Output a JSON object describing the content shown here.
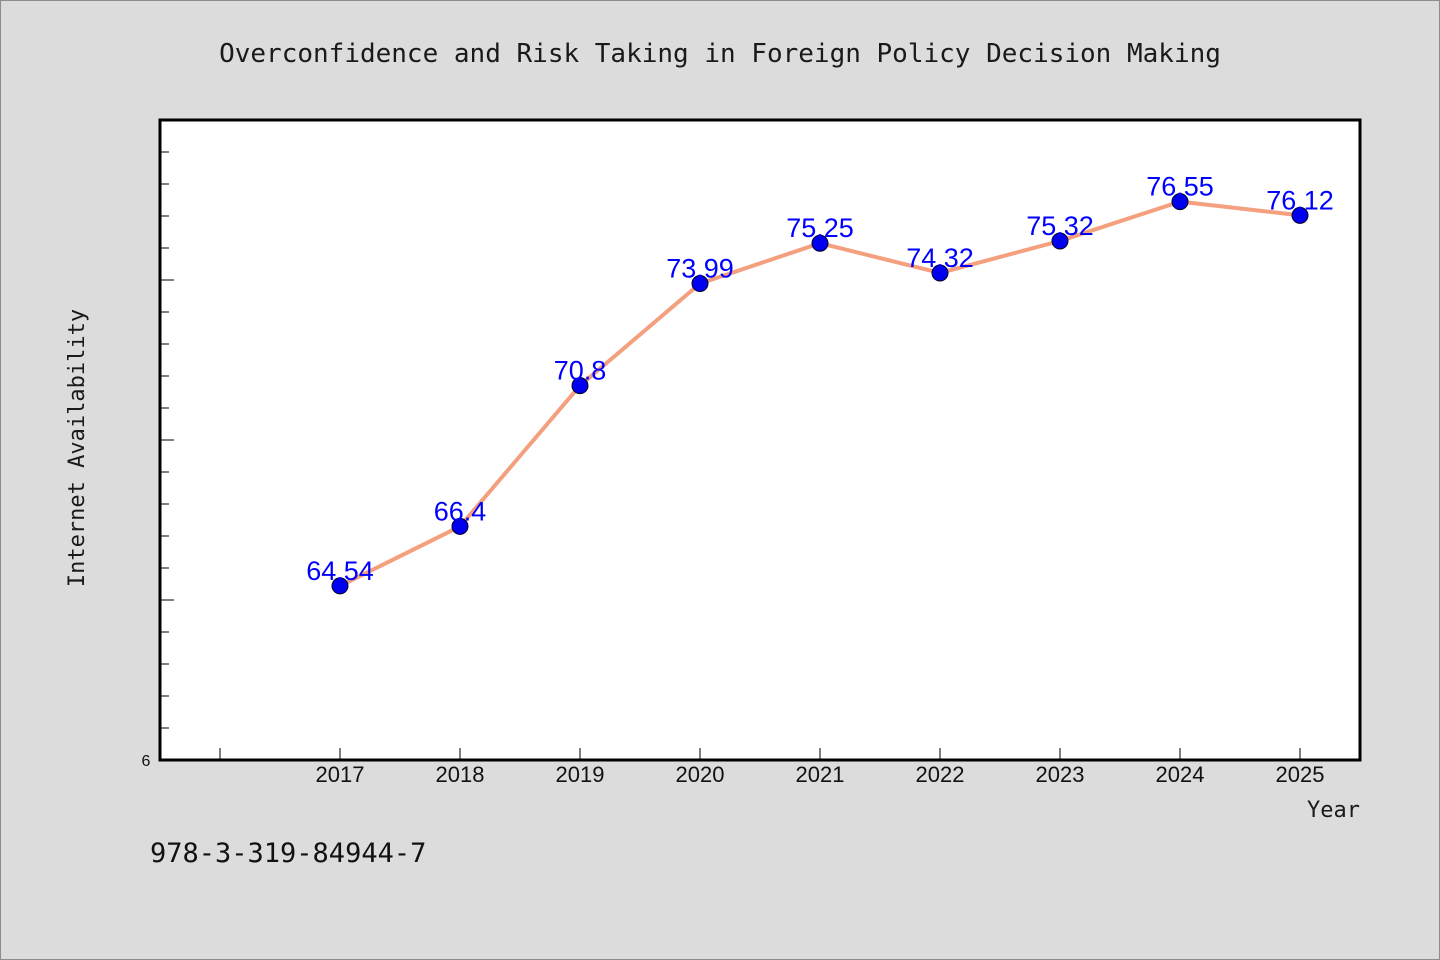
{
  "chart_data": {
    "type": "line",
    "title": "Overconfidence and Risk Taking in Foreign Policy Decision Making",
    "xlabel": "Year",
    "ylabel": "Internet Availability",
    "categories": [
      "2017",
      "2018",
      "2019",
      "2020",
      "2021",
      "2022",
      "2023",
      "2024",
      "2025"
    ],
    "series": [
      {
        "values": [
          64.54,
          66.4,
          70.8,
          73.99,
          75.25,
          74.32,
          75.32,
          76.55,
          76.12
        ],
        "labels": [
          "64.54",
          "66.4",
          "70.8",
          "73.99",
          "75.25",
          "74.32",
          "75.32",
          "76.55",
          "76.12"
        ]
      }
    ],
    "y_tick_labels": [
      "6"
    ],
    "ylim": [
      59.1,
      79.1
    ],
    "grid": false,
    "colors": {
      "line": "#f4a07e",
      "marker": "#0000ee",
      "label": "#0000ff",
      "plot_background": "#ffffff",
      "page_background": "#dcdcdc"
    }
  },
  "footer": {
    "isbn": "978-3-319-84944-7"
  }
}
